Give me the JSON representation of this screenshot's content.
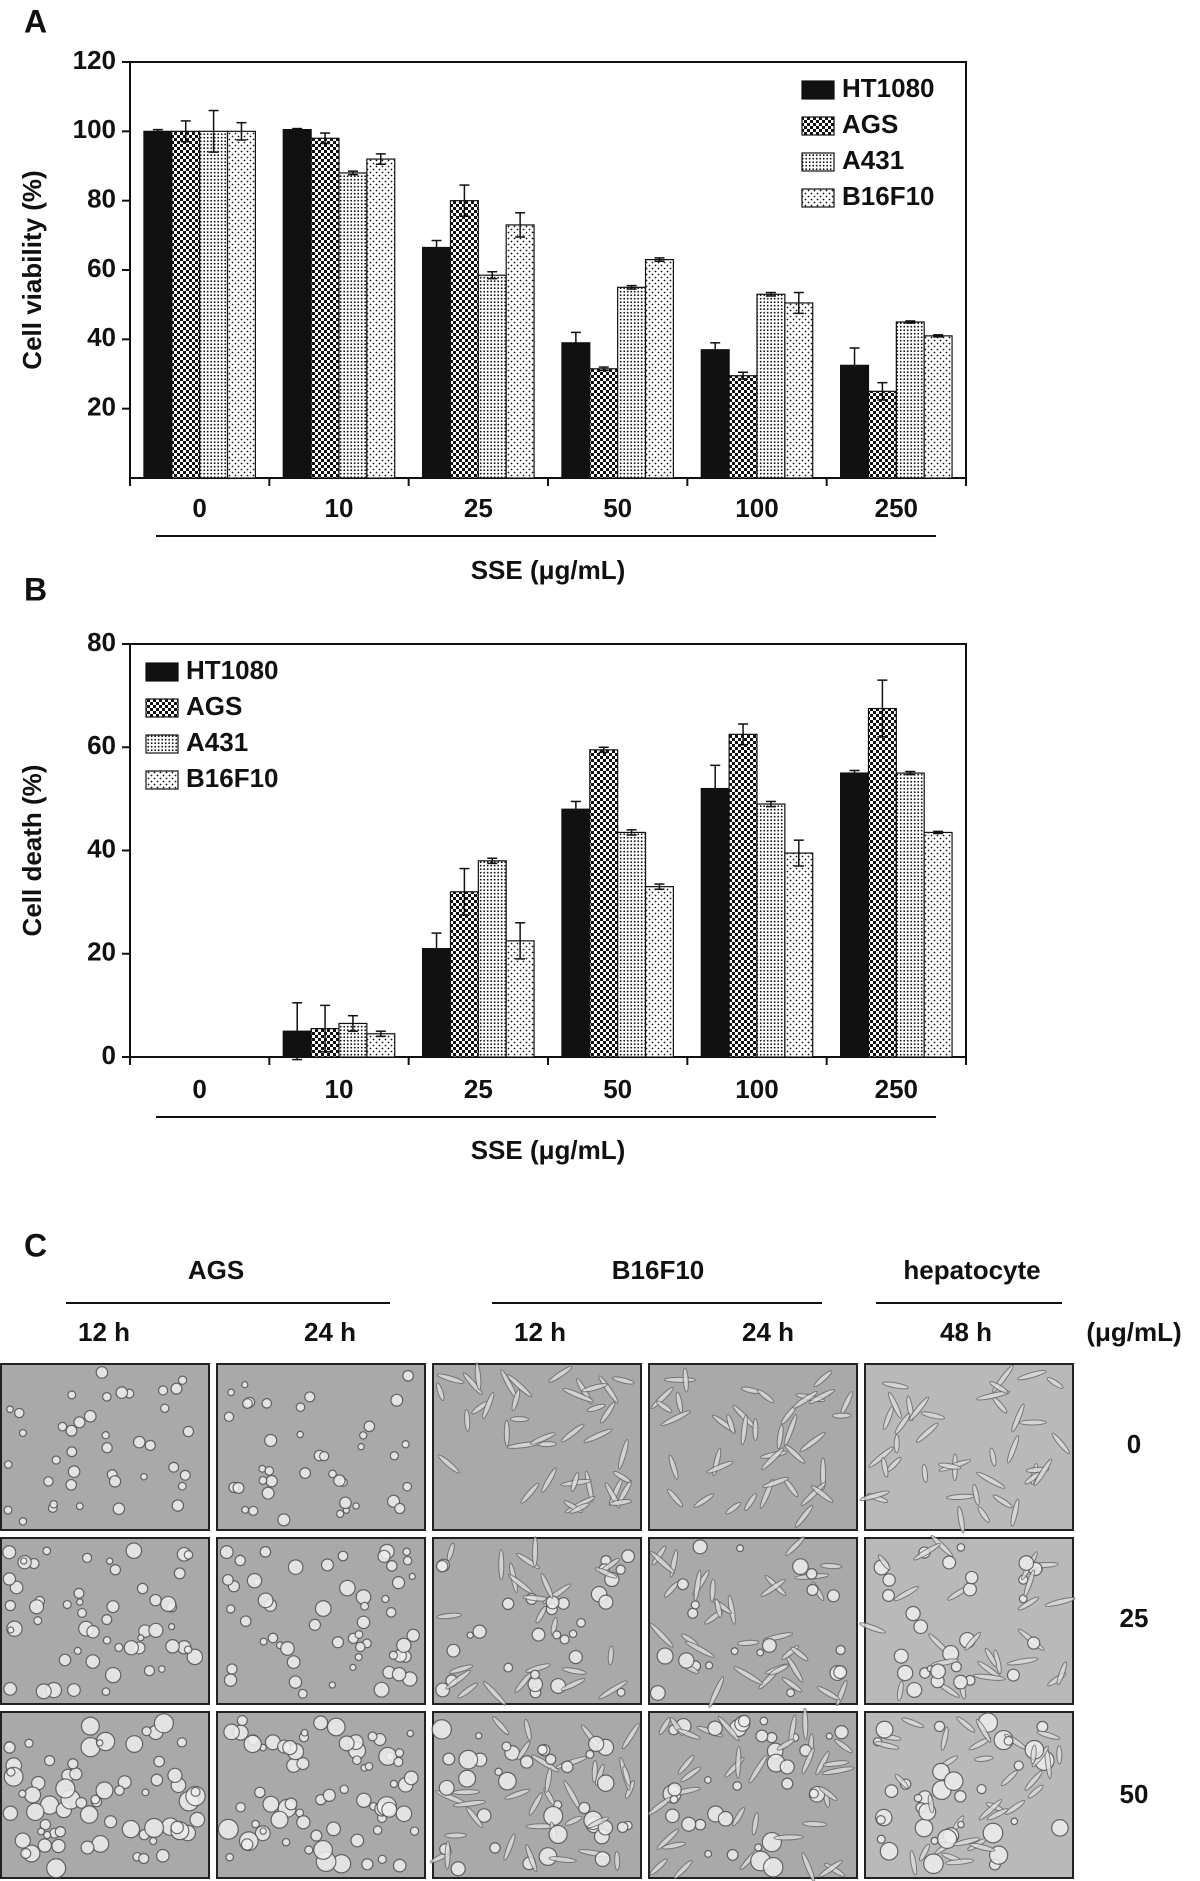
{
  "chart_data": [
    {
      "type": "bar",
      "panel_label": "A",
      "ylabel": "Cell viability (%)",
      "xlabel": "SSE (μg/mL)",
      "categories": [
        "0",
        "10",
        "25",
        "50",
        "100",
        "250"
      ],
      "ylim": [
        0,
        120
      ],
      "yticks": [
        20,
        40,
        60,
        80,
        100,
        120
      ],
      "legend": "upper-right",
      "series": [
        {
          "name": "HT1080",
          "color": "#111111",
          "pattern": "solid",
          "values": [
            100,
            100.5,
            66.5,
            39,
            37,
            32.5
          ],
          "errors": [
            0.5,
            0.3,
            2,
            3,
            2,
            5
          ]
        },
        {
          "name": "AGS",
          "color": "#111111",
          "pattern": "checker",
          "values": [
            100,
            98,
            80,
            31.5,
            29.5,
            25
          ],
          "errors": [
            3,
            1.5,
            4.5,
            0.5,
            1,
            2.5
          ]
        },
        {
          "name": "A431",
          "color": "#111111",
          "pattern": "dense-dots",
          "values": [
            100,
            88,
            58.5,
            55,
            53,
            45
          ],
          "errors": [
            6,
            0.5,
            1,
            0.5,
            0.5,
            0.3
          ]
        },
        {
          "name": "B16F10",
          "color": "#111111",
          "pattern": "sparse-dots",
          "values": [
            100,
            92,
            73,
            63,
            50.5,
            41
          ],
          "errors": [
            2.5,
            1.5,
            3.5,
            0.5,
            3,
            0.3
          ]
        }
      ]
    },
    {
      "type": "bar",
      "panel_label": "B",
      "ylabel": "Cell death (%)",
      "xlabel": "SSE (μg/mL)",
      "categories": [
        "0",
        "10",
        "25",
        "50",
        "100",
        "250"
      ],
      "ylim": [
        0,
        80
      ],
      "yticks": [
        0,
        20,
        40,
        60,
        80
      ],
      "legend": "upper-left",
      "series": [
        {
          "name": "HT1080",
          "color": "#111111",
          "pattern": "solid",
          "values": [
            0,
            5,
            21,
            48,
            52,
            55
          ],
          "errors": [
            0,
            5.5,
            3,
            1.5,
            4.5,
            0.5
          ]
        },
        {
          "name": "AGS",
          "color": "#111111",
          "pattern": "checker",
          "values": [
            0,
            5.5,
            32,
            59.5,
            62.5,
            67.5
          ],
          "errors": [
            0,
            4.5,
            4.5,
            0.5,
            2,
            5.5
          ]
        },
        {
          "name": "A431",
          "color": "#111111",
          "pattern": "dense-dots",
          "values": [
            0,
            6.5,
            38,
            43.5,
            49,
            55
          ],
          "errors": [
            0,
            1.5,
            0.5,
            0.5,
            0.5,
            0.3
          ]
        },
        {
          "name": "B16F10",
          "color": "#111111",
          "pattern": "sparse-dots",
          "values": [
            0,
            4.5,
            22.5,
            33,
            39.5,
            43.5
          ],
          "errors": [
            0,
            0.5,
            3.5,
            0.5,
            2.5,
            0.2
          ]
        }
      ]
    }
  ],
  "panel_c": {
    "label": "C",
    "groups": [
      "AGS",
      "B16F10",
      "hepatocyte"
    ],
    "times": [
      "12 h",
      "24 h",
      "12 h",
      "24 h",
      "48 h"
    ],
    "unit": "(μg/mL)",
    "doses": [
      "0",
      "25",
      "50"
    ]
  }
}
